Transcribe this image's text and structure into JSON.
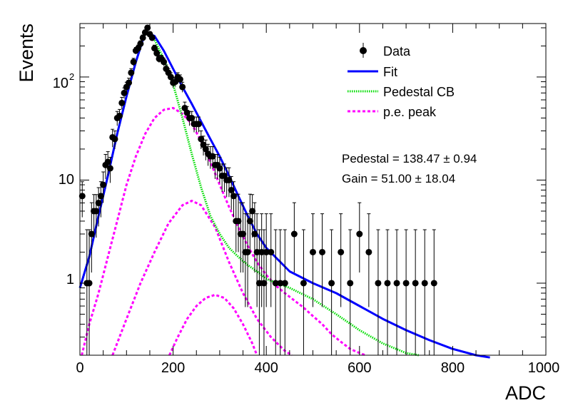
{
  "chart_data": {
    "type": "scatter",
    "title": "",
    "xlabel": "ADC",
    "ylabel": "Events",
    "xlim": [
      0,
      1000
    ],
    "ylim": [
      0.2,
      330
    ],
    "log_y": true,
    "grid": false,
    "legend_position": "top-right",
    "x_ticks": [
      "0",
      "200",
      "400",
      "600",
      "800",
      "1000"
    ],
    "y_ticks": [
      "1",
      "10",
      "10"
    ],
    "y_tick_exponent": "2",
    "legend": [
      {
        "label": "Data",
        "style": "marker",
        "color": "#000000"
      },
      {
        "label": "Fit",
        "style": "line",
        "color": "#0000ff"
      },
      {
        "label": "Pedestal CB",
        "style": "dotted",
        "color": "#00dd00"
      },
      {
        "label": "p.e. peak",
        "style": "dashed",
        "color": "#ff00ff"
      }
    ],
    "annotations": {
      "pedestal": "Pedestal = 138.47 ± 0.94",
      "gain": "Gain = 51.00 ± 18.04"
    },
    "series": [
      {
        "name": "Data",
        "x": [
          5,
          15,
          20,
          25,
          30,
          35,
          40,
          45,
          50,
          55,
          60,
          65,
          70,
          75,
          80,
          85,
          90,
          95,
          100,
          105,
          110,
          115,
          120,
          125,
          130,
          135,
          140,
          145,
          150,
          155,
          160,
          165,
          170,
          175,
          180,
          185,
          190,
          195,
          200,
          205,
          210,
          215,
          220,
          225,
          230,
          235,
          240,
          245,
          250,
          255,
          260,
          265,
          270,
          275,
          280,
          285,
          290,
          295,
          300,
          305,
          310,
          315,
          320,
          325,
          330,
          335,
          340,
          345,
          350,
          355,
          360,
          365,
          370,
          375,
          380,
          385,
          390,
          395,
          400,
          410,
          420,
          430,
          440,
          460,
          480,
          500,
          520,
          540,
          560,
          580,
          600,
          620,
          640,
          660,
          680,
          700,
          720,
          740,
          760
        ],
        "y": [
          7,
          1,
          1,
          3,
          5,
          5,
          6,
          7,
          9,
          14,
          15,
          13,
          26,
          25,
          40,
          42,
          56,
          70,
          80,
          88,
          110,
          140,
          180,
          190,
          210,
          240,
          270,
          300,
          260,
          240,
          190,
          170,
          150,
          150,
          140,
          120,
          110,
          100,
          88,
          90,
          100,
          95,
          80,
          50,
          45,
          40,
          40,
          35,
          35,
          35,
          25,
          22,
          20,
          18,
          17,
          17,
          14,
          14,
          13,
          11,
          11,
          10,
          10,
          8,
          7,
          4,
          4,
          3,
          3,
          2,
          2,
          4,
          5,
          3,
          2,
          1,
          2,
          1,
          2,
          2,
          1,
          1,
          1,
          3,
          1,
          2,
          2,
          1,
          2,
          1,
          3,
          2,
          1,
          1,
          1,
          1,
          1,
          1,
          1
        ]
      },
      {
        "name": "Fit",
        "x": [
          0,
          20,
          40,
          60,
          80,
          100,
          120,
          140,
          160,
          180,
          200,
          220,
          240,
          260,
          280,
          300,
          320,
          340,
          360,
          380,
          400,
          450,
          500,
          550,
          600,
          650,
          700,
          750,
          800,
          850,
          880
        ],
        "y": [
          0.9,
          1.8,
          4.5,
          11,
          28,
          65,
          140,
          270,
          250,
          180,
          120,
          80,
          55,
          37,
          25,
          17,
          11,
          7,
          4.5,
          3,
          2.2,
          1.3,
          1,
          0.8,
          0.6,
          0.45,
          0.35,
          0.28,
          0.23,
          0.2,
          0.19
        ]
      },
      {
        "name": "Pedestal CB",
        "x": [
          0,
          20,
          40,
          60,
          80,
          100,
          120,
          140,
          160,
          180,
          200,
          220,
          240,
          260,
          280,
          300,
          320,
          340,
          360,
          380,
          400,
          450,
          500,
          550,
          600,
          650,
          700,
          727
        ],
        "y": [
          0.9,
          1.8,
          4.5,
          11,
          28,
          65,
          140,
          270,
          230,
          150,
          85,
          40,
          18,
          8.5,
          4.5,
          3,
          2.2,
          1.8,
          1.5,
          1.3,
          1.1,
          0.9,
          0.7,
          0.5,
          0.35,
          0.26,
          0.21,
          0.2
        ]
      },
      {
        "name": "p.e. peak 1",
        "x": [
          4,
          20,
          40,
          60,
          80,
          100,
          120,
          140,
          160,
          180,
          200,
          220,
          240,
          260,
          280,
          300,
          320,
          340,
          360,
          380,
          400,
          420,
          440,
          460,
          480,
          500,
          520,
          540,
          560,
          580,
          600,
          613
        ],
        "y": [
          0.2,
          0.4,
          0.8,
          1.8,
          4,
          9,
          17,
          28,
          40,
          48,
          50,
          44,
          35,
          24,
          15,
          9,
          5.5,
          3.5,
          2.3,
          1.6,
          1.2,
          0.95,
          0.8,
          0.68,
          0.58,
          0.48,
          0.4,
          0.32,
          0.27,
          0.23,
          0.21,
          0.2
        ]
      },
      {
        "name": "p.e. peak 2",
        "x": [
          70,
          100,
          130,
          160,
          190,
          220,
          240,
          260,
          290,
          320,
          350,
          380,
          410,
          440,
          455
        ],
        "y": [
          0.2,
          0.45,
          1,
          2,
          3.8,
          5.7,
          6.3,
          5.7,
          3.5,
          1.6,
          0.8,
          0.45,
          0.3,
          0.22,
          0.2
        ]
      },
      {
        "name": "p.e. peak 3",
        "x": [
          192,
          210,
          230,
          250,
          270,
          290,
          310,
          330,
          350,
          370,
          380
        ],
        "y": [
          0.2,
          0.3,
          0.45,
          0.6,
          0.72,
          0.77,
          0.72,
          0.57,
          0.4,
          0.26,
          0.2
        ]
      }
    ]
  }
}
